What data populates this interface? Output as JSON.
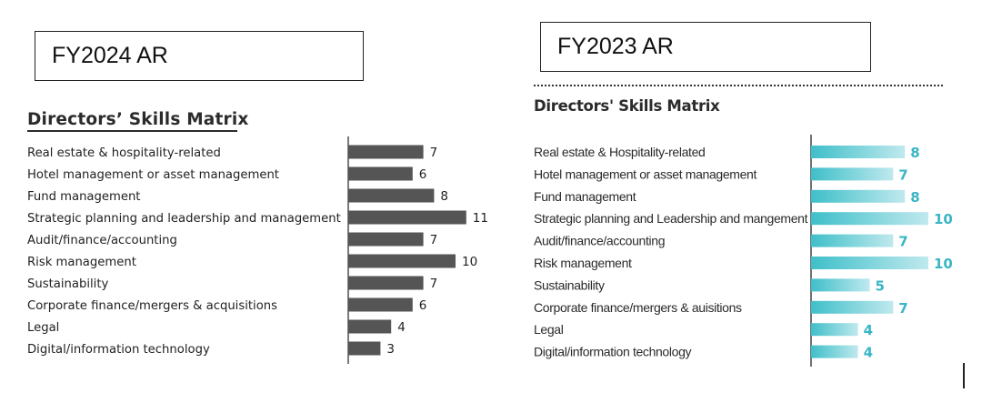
{
  "left_panel": {
    "tag": "FY2024 AR",
    "title": "Directors’ Skills Matrix"
  },
  "right_panel": {
    "tag": "FY2023 AR",
    "title": "Directors' Skills Matrix"
  },
  "colors": {
    "fy2024_bar": "#555555",
    "fy2023_bar_start": "#3fbfc9",
    "fy2023_bar_end": "#bfe9ee",
    "fy2023_value": "#3ab5c6"
  },
  "chart_data": [
    {
      "type": "bar",
      "orientation": "horizontal",
      "title": "Directors’ Skills Matrix",
      "categories": [
        "Real estate & hospitality-related",
        "Hotel management or asset management",
        "Fund management",
        "Strategic planning and leadership and management",
        "Audit/finance/accounting",
        "Risk management",
        "Sustainability",
        "Corporate finance/mergers & acquisitions",
        "Legal",
        "Digital/information technology"
      ],
      "values": [
        7,
        6,
        8,
        11,
        7,
        10,
        7,
        6,
        4,
        3
      ],
      "data_labels": [
        "7",
        "6",
        "8",
        "11",
        "7",
        "10",
        "7",
        "6",
        "4",
        "3"
      ],
      "xlim": [
        0,
        11
      ],
      "grid": false
    },
    {
      "type": "bar",
      "orientation": "horizontal",
      "title": "Directors' Skills Matrix",
      "categories": [
        "Real estate & Hospitality-related",
        "Hotel management or asset management",
        "Fund management",
        "Strategic planning and Leadership and mangement",
        "Audit/finance/accounting",
        "Risk management",
        "Sustainability",
        "Corporate finance/mergers & auisitions",
        "Legal",
        "Digital/information technology"
      ],
      "values": [
        8,
        7,
        8,
        10,
        7,
        10,
        5,
        7,
        4,
        4
      ],
      "data_labels": [
        "8",
        "7",
        "8",
        "10",
        "7",
        "10",
        "5",
        "7",
        "4",
        "4"
      ],
      "xlim": [
        0,
        10
      ],
      "grid": false
    }
  ]
}
